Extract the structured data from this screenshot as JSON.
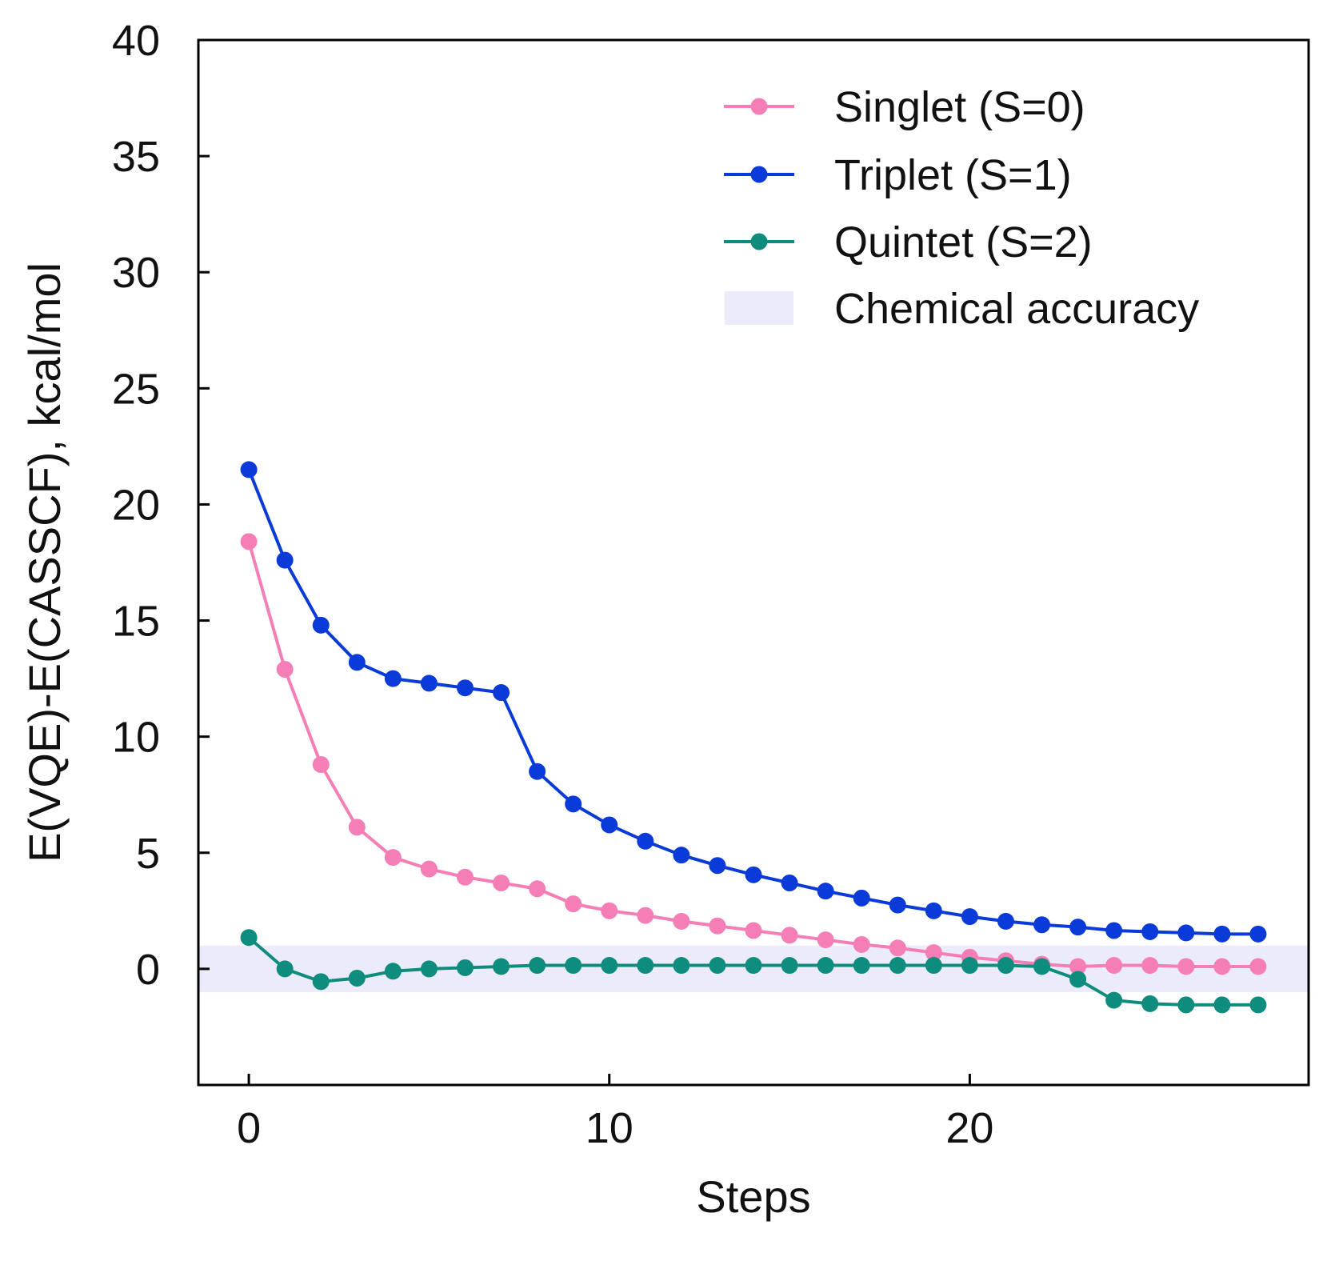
{
  "chart_data": {
    "type": "line",
    "title": "",
    "xlabel": "Steps",
    "ylabel": "E(VQE)-E(CASSCF), kcal/mol",
    "xlim": [
      -1.4,
      29.4
    ],
    "ylim": [
      -5,
      40
    ],
    "xticks": [
      0,
      10,
      20
    ],
    "yticks": [
      0,
      5,
      10,
      15,
      20,
      25,
      30,
      35,
      40
    ],
    "grid": false,
    "legend_position": "top-right",
    "band": {
      "name": "Chemical accuracy",
      "from": -1,
      "to": 1,
      "color": "#ebebfa"
    },
    "x": [
      0,
      1,
      2,
      3,
      4,
      5,
      6,
      7,
      8,
      9,
      10,
      11,
      12,
      13,
      14,
      15,
      16,
      17,
      18,
      19,
      20,
      21,
      22,
      23,
      24,
      25,
      26,
      27,
      28
    ],
    "series": [
      {
        "name": "Singlet  (S=0)",
        "color": "#f57eb6",
        "values": [
          18.4,
          12.9,
          8.8,
          6.1,
          4.8,
          4.3,
          3.95,
          3.7,
          3.45,
          2.8,
          2.5,
          2.3,
          2.05,
          1.85,
          1.65,
          1.45,
          1.25,
          1.05,
          0.9,
          0.7,
          0.5,
          0.35,
          0.2,
          0.1,
          0.15,
          0.15,
          0.1,
          0.1,
          0.1
        ]
      },
      {
        "name": "Triplet   (S=1)",
        "color": "#0a3ad8",
        "values": [
          21.5,
          17.6,
          14.8,
          13.2,
          12.5,
          12.3,
          12.1,
          11.9,
          8.5,
          7.1,
          6.2,
          5.5,
          4.9,
          4.45,
          4.05,
          3.7,
          3.35,
          3.05,
          2.75,
          2.5,
          2.25,
          2.05,
          1.9,
          1.8,
          1.65,
          1.6,
          1.55,
          1.5,
          1.5
        ]
      },
      {
        "name": "Quintet (S=2)",
        "color": "#0e8c7d",
        "values": [
          1.35,
          0.0,
          -0.55,
          -0.4,
          -0.1,
          0.0,
          0.05,
          0.1,
          0.15,
          0.15,
          0.15,
          0.15,
          0.15,
          0.15,
          0.15,
          0.15,
          0.15,
          0.15,
          0.15,
          0.15,
          0.15,
          0.15,
          0.1,
          -0.45,
          -1.35,
          -1.5,
          -1.55,
          -1.55,
          -1.55
        ]
      }
    ]
  }
}
